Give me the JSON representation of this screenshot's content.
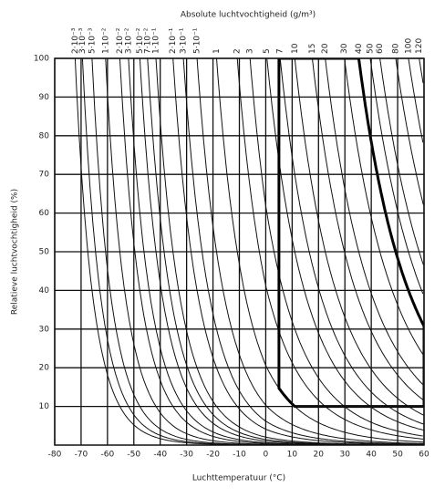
{
  "chart_data": {
    "type": "humidity",
    "title": "Absolute luchtvochtigheid (g/m³)",
    "x_label": "Luchttemperatuur (°C)",
    "y_label": "Relatieve luchtvochtigheid (%)",
    "xlim": [
      -80,
      60
    ],
    "xticks": [
      -80,
      -70,
      -60,
      -50,
      -40,
      -30,
      -20,
      -10,
      0,
      10,
      20,
      30,
      40,
      50,
      60
    ],
    "ylim": [
      0,
      100
    ],
    "yticks": [
      10,
      20,
      30,
      40,
      50,
      60,
      70,
      80,
      90,
      100
    ],
    "grid": true,
    "curves": [
      {
        "value": 0.002,
        "label": "2·10⁻³"
      },
      {
        "value": 0.003,
        "label": "3·10⁻³"
      },
      {
        "value": 0.005,
        "label": "5·10⁻³"
      },
      {
        "value": 0.01,
        "label": "1·10⁻²"
      },
      {
        "value": 0.02,
        "label": "2·10⁻²"
      },
      {
        "value": 0.03,
        "label": "3·10⁻²"
      },
      {
        "value": 0.05,
        "label": "5·10⁻²"
      },
      {
        "value": 0.07,
        "label": "7·10⁻²"
      },
      {
        "value": 0.1,
        "label": "1·10⁻¹"
      },
      {
        "value": 0.2,
        "label": "2·10⁻¹"
      },
      {
        "value": 0.3,
        "label": "3·10⁻¹"
      },
      {
        "value": 0.5,
        "label": "5·10⁻¹"
      },
      1,
      2,
      3,
      5,
      7,
      10,
      15,
      20,
      30,
      40,
      50,
      60,
      80,
      100,
      120
    ],
    "region": {
      "t": [
        5,
        60
      ],
      "rh": [
        10,
        100
      ],
      "ah": [
        1,
        40
      ]
    }
  }
}
